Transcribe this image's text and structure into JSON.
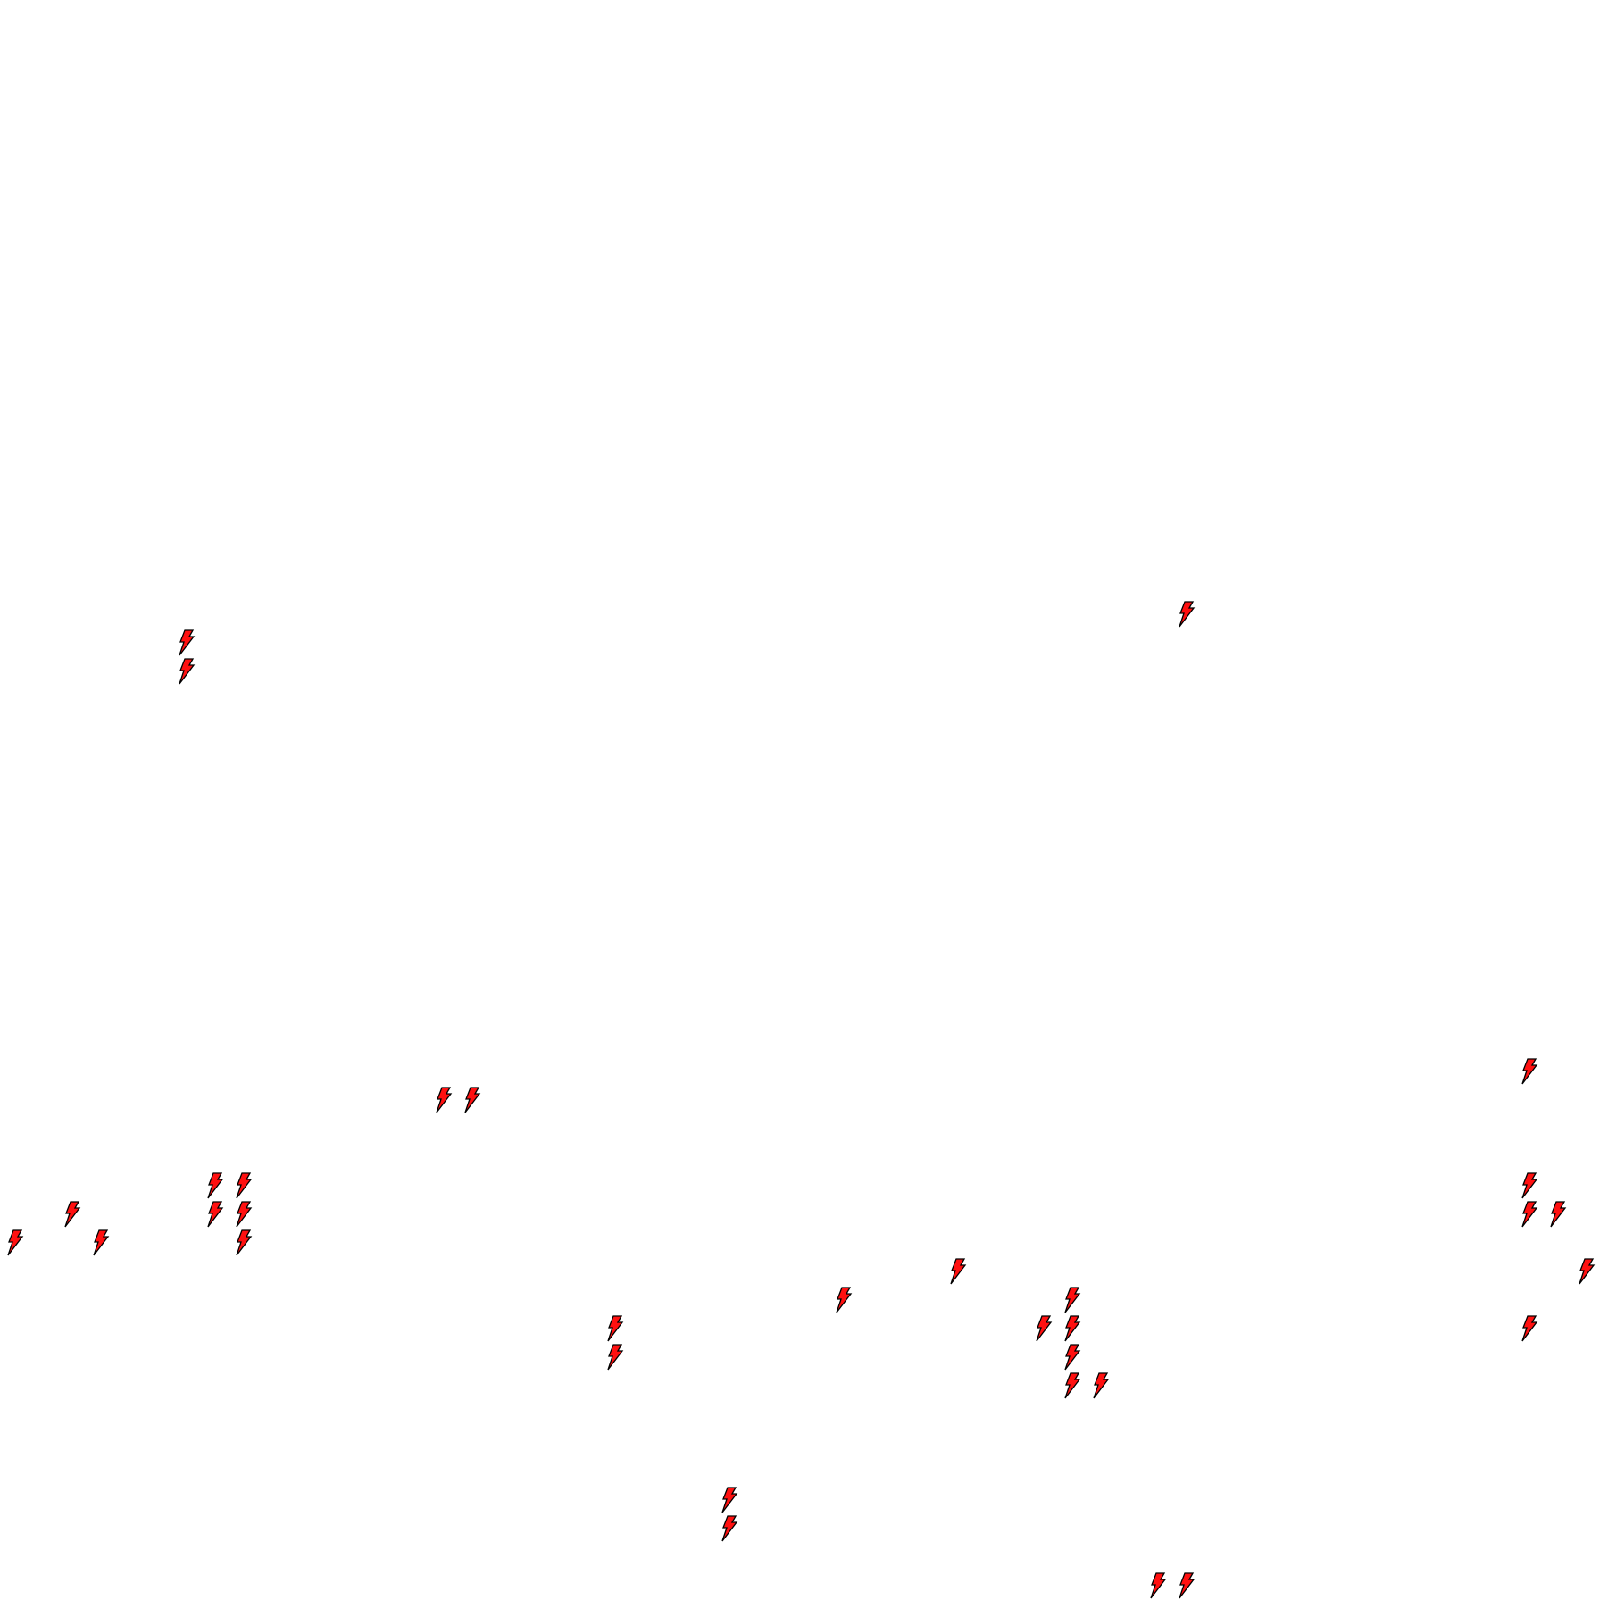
{
  "map": {
    "background_color": "#ffffff",
    "marker": {
      "icon": "lightning-bolt-icon",
      "fill_color": "#ff1010",
      "stroke_color": "#000000"
    }
  }
}
